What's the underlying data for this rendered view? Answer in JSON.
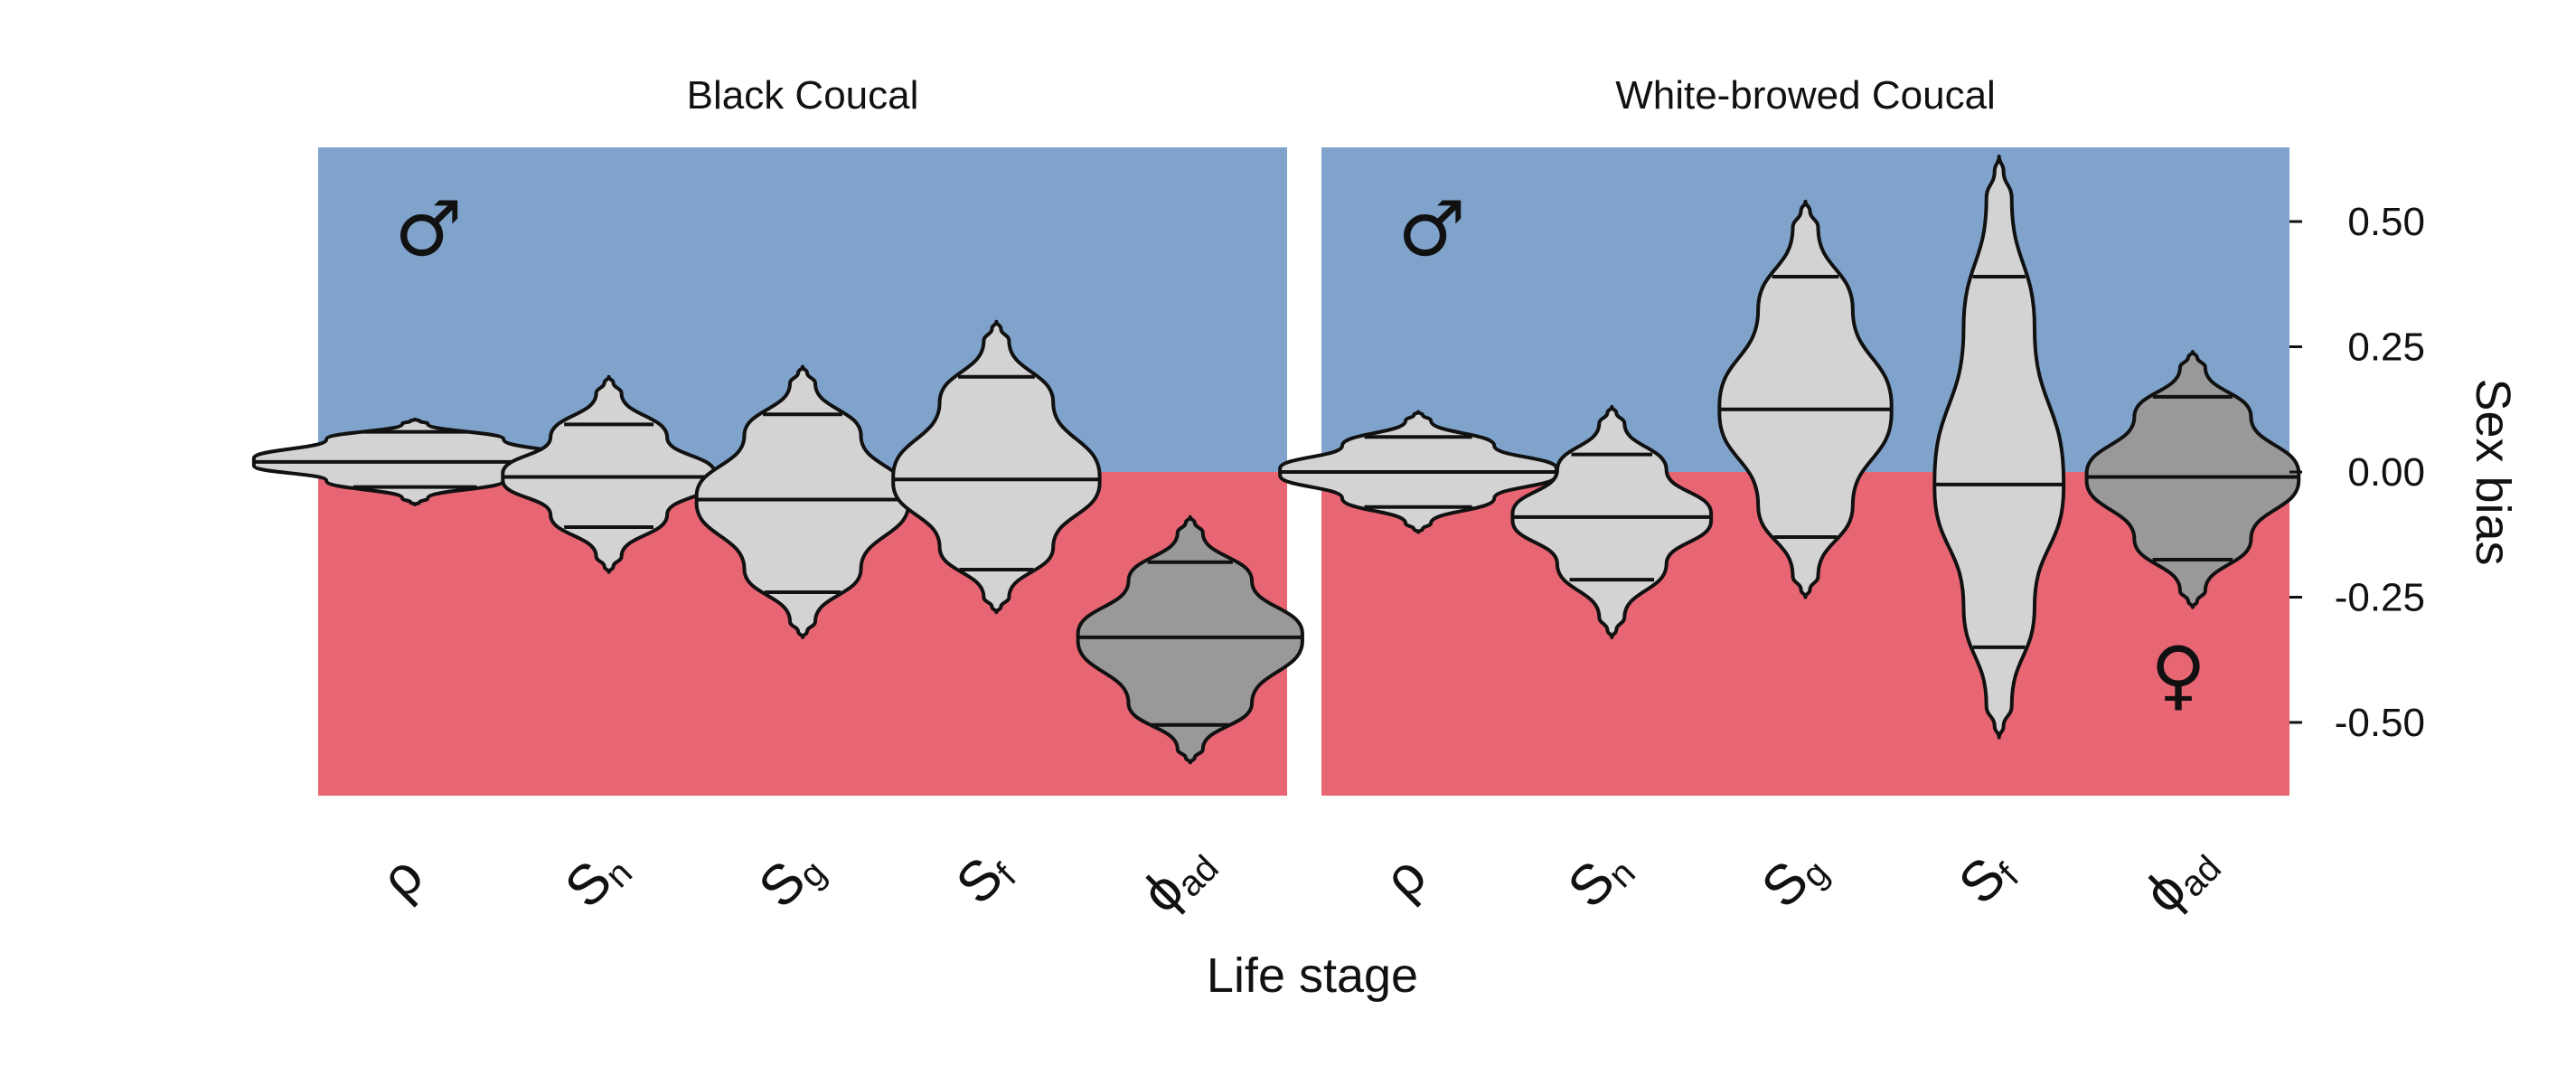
{
  "colors": {
    "male_region": "#7FA3CB",
    "female_region": "#E86673",
    "violin_light": "#D3D3D3",
    "violin_dark": "#999999",
    "outline": "#111111"
  },
  "chart_data": {
    "type": "violin",
    "xlabel": "Life stage",
    "ylabel": "Sex bias",
    "ylim": [
      -0.65,
      0.65
    ],
    "y_ticks": [
      0.5,
      0.25,
      0.0,
      -0.25,
      -0.5
    ],
    "y_tick_labels": [
      "0.50",
      "0.25",
      "0.00",
      "-0.25",
      "-0.50"
    ],
    "y_axis_side": "right",
    "grid": false,
    "categories": [
      {
        "main": "ρ",
        "sub": ""
      },
      {
        "main": "S",
        "sub": "n"
      },
      {
        "main": "S",
        "sub": "g"
      },
      {
        "main": "S",
        "sub": "f"
      },
      {
        "main": "ϕ",
        "sub": "ad"
      }
    ],
    "panels": [
      {
        "title": "Black Coucal",
        "symbols": [
          "♂"
        ],
        "violins": [
          {
            "category": "ρ",
            "min": -0.065,
            "max": 0.105,
            "q_low": -0.03,
            "median": 0.02,
            "q_high": 0.08,
            "shaded": false
          },
          {
            "category": "Sn",
            "min": -0.2,
            "max": 0.19,
            "q_low": -0.11,
            "median": -0.01,
            "q_high": 0.095,
            "shaded": false
          },
          {
            "category": "Sg",
            "min": -0.33,
            "max": 0.21,
            "q_low": -0.24,
            "median": -0.055,
            "q_high": 0.115,
            "shaded": false
          },
          {
            "category": "Sf",
            "min": -0.28,
            "max": 0.3,
            "q_low": -0.195,
            "median": -0.015,
            "q_high": 0.19,
            "shaded": false
          },
          {
            "category": "ϕad",
            "min": -0.58,
            "max": -0.09,
            "q_low": -0.505,
            "median": -0.33,
            "q_high": -0.18,
            "shaded": true
          }
        ]
      },
      {
        "title": "White-browed Coucal",
        "symbols": [
          "♂",
          "♀"
        ],
        "violins": [
          {
            "category": "ρ",
            "min": -0.12,
            "max": 0.12,
            "q_low": -0.07,
            "median": 0.0,
            "q_high": 0.07,
            "shaded": false
          },
          {
            "category": "Sn",
            "min": -0.33,
            "max": 0.13,
            "q_low": -0.215,
            "median": -0.09,
            "q_high": 0.035,
            "shaded": false
          },
          {
            "category": "Sg",
            "min": -0.25,
            "max": 0.54,
            "q_low": -0.13,
            "median": 0.125,
            "q_high": 0.39,
            "shaded": false
          },
          {
            "category": "Sf",
            "min": -0.53,
            "max": 0.63,
            "q_low": -0.35,
            "median": -0.025,
            "q_high": 0.39,
            "shaded": false
          },
          {
            "category": "ϕad",
            "min": -0.27,
            "max": 0.24,
            "q_low": -0.175,
            "median": -0.01,
            "q_high": 0.15,
            "shaded": true
          }
        ]
      }
    ]
  }
}
